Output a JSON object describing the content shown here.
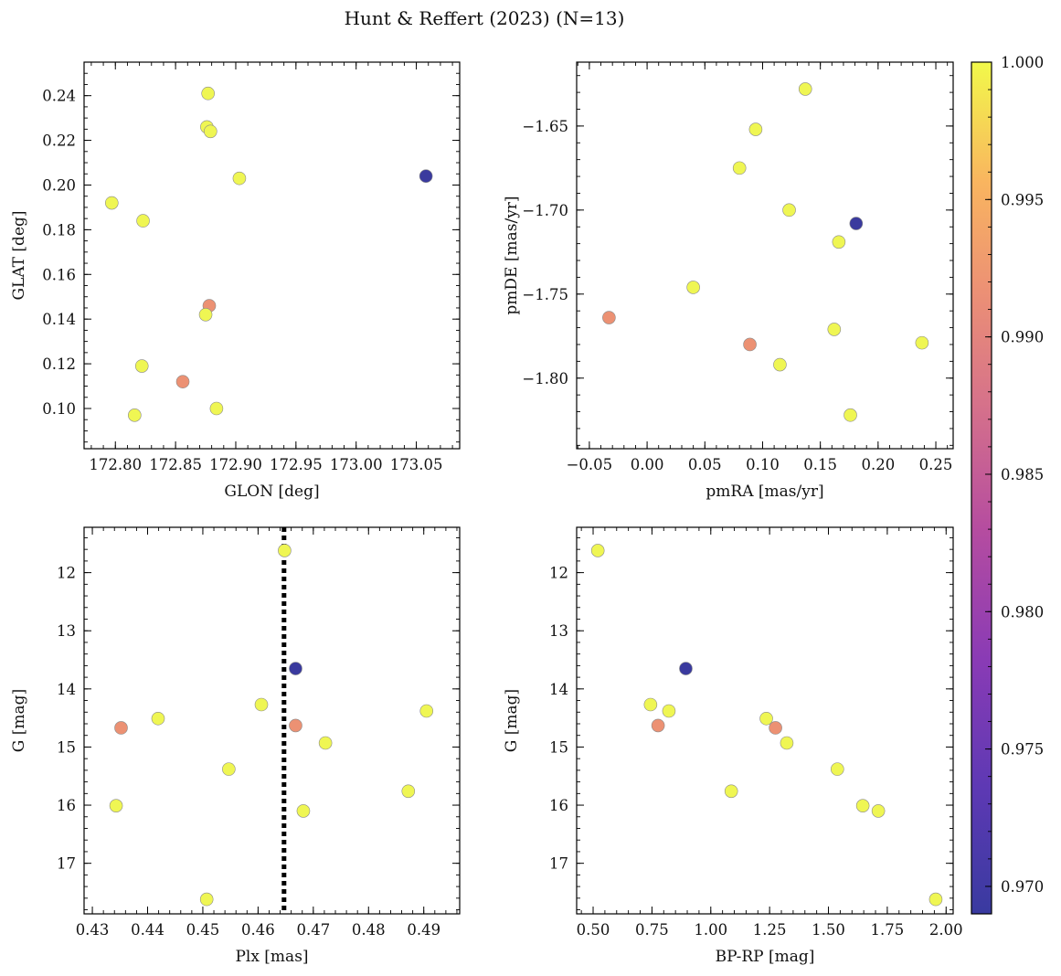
{
  "figure": {
    "title": "Hunt & Reffert (2023) (N=13)"
  },
  "colorbar": {
    "colormap": "plasma",
    "range": [
      0.969,
      1.0
    ],
    "ticks": [
      "0.970",
      "0.975",
      "0.980",
      "0.985",
      "0.990",
      "0.995",
      "1.000"
    ]
  },
  "chart_data": [
    {
      "type": "scatter",
      "xlabel": "GLON [deg]",
      "ylabel": "GLAT [deg]",
      "xlim": [
        172.774,
        173.086
      ],
      "ylim": [
        0.082,
        0.255
      ],
      "y_inverted": false,
      "xticks": [
        "172.80",
        "172.85",
        "172.90",
        "172.95",
        "173.00",
        "173.05"
      ],
      "yticks": [
        "0.10",
        "0.12",
        "0.14",
        "0.16",
        "0.18",
        "0.20",
        "0.22",
        "0.24"
      ],
      "points": [
        {
          "x": 172.797,
          "y": 0.192,
          "c": 1.0
        },
        {
          "x": 172.823,
          "y": 0.184,
          "c": 1.0
        },
        {
          "x": 172.877,
          "y": 0.241,
          "c": 1.0
        },
        {
          "x": 172.876,
          "y": 0.226,
          "c": 1.0
        },
        {
          "x": 172.879,
          "y": 0.224,
          "c": 1.0
        },
        {
          "x": 172.903,
          "y": 0.203,
          "c": 1.0
        },
        {
          "x": 173.058,
          "y": 0.204,
          "c": 0.969
        },
        {
          "x": 172.878,
          "y": 0.146,
          "c": 0.99
        },
        {
          "x": 172.875,
          "y": 0.142,
          "c": 1.0
        },
        {
          "x": 172.822,
          "y": 0.119,
          "c": 1.0
        },
        {
          "x": 172.856,
          "y": 0.112,
          "c": 0.99
        },
        {
          "x": 172.884,
          "y": 0.1,
          "c": 1.0
        },
        {
          "x": 172.816,
          "y": 0.097,
          "c": 1.0
        }
      ]
    },
    {
      "type": "scatter",
      "xlabel": "pmRA [mas/yr]",
      "ylabel": "pmDE [mas/yr]",
      "xlim": [
        -0.061,
        0.265
      ],
      "ylim": [
        -1.842,
        -1.612
      ],
      "y_inverted": false,
      "xticks": [
        "−0.05",
        "0.00",
        "0.05",
        "0.10",
        "0.15",
        "0.20",
        "0.25"
      ],
      "yticks": [
        "−1.65",
        "−1.70",
        "−1.75",
        "−1.80"
      ],
      "points": [
        {
          "x": 0.137,
          "y": -1.628,
          "c": 1.0
        },
        {
          "x": 0.094,
          "y": -1.652,
          "c": 1.0
        },
        {
          "x": 0.08,
          "y": -1.675,
          "c": 1.0
        },
        {
          "x": 0.123,
          "y": -1.7,
          "c": 1.0
        },
        {
          "x": 0.181,
          "y": -1.708,
          "c": 0.969
        },
        {
          "x": 0.166,
          "y": -1.719,
          "c": 1.0
        },
        {
          "x": 0.04,
          "y": -1.746,
          "c": 1.0
        },
        {
          "x": -0.033,
          "y": -1.764,
          "c": 0.99
        },
        {
          "x": 0.162,
          "y": -1.771,
          "c": 1.0
        },
        {
          "x": 0.089,
          "y": -1.78,
          "c": 0.99
        },
        {
          "x": 0.238,
          "y": -1.779,
          "c": 1.0
        },
        {
          "x": 0.115,
          "y": -1.792,
          "c": 1.0
        },
        {
          "x": 0.176,
          "y": -1.822,
          "c": 1.0
        }
      ]
    },
    {
      "type": "scatter",
      "xlabel": "Plx [mas]",
      "ylabel": "G [mag]",
      "xlim": [
        0.4285,
        0.4965
      ],
      "ylim": [
        17.87,
        11.22
      ],
      "y_inverted": true,
      "vline": 0.4647,
      "xticks": [
        "0.43",
        "0.44",
        "0.45",
        "0.46",
        "0.47",
        "0.48",
        "0.49"
      ],
      "yticks": [
        "12",
        "13",
        "14",
        "15",
        "16",
        "17"
      ],
      "points": [
        {
          "x": 0.4648,
          "y": 11.62,
          "c": 1.0
        },
        {
          "x": 0.4668,
          "y": 13.65,
          "c": 0.969
        },
        {
          "x": 0.4606,
          "y": 14.27,
          "c": 1.0
        },
        {
          "x": 0.4905,
          "y": 14.38,
          "c": 1.0
        },
        {
          "x": 0.4419,
          "y": 14.51,
          "c": 1.0
        },
        {
          "x": 0.4668,
          "y": 14.63,
          "c": 0.99
        },
        {
          "x": 0.4352,
          "y": 14.67,
          "c": 0.99
        },
        {
          "x": 0.4722,
          "y": 14.93,
          "c": 1.0
        },
        {
          "x": 0.4547,
          "y": 15.38,
          "c": 1.0
        },
        {
          "x": 0.4872,
          "y": 15.76,
          "c": 1.0
        },
        {
          "x": 0.4343,
          "y": 16.01,
          "c": 1.0
        },
        {
          "x": 0.4682,
          "y": 16.1,
          "c": 1.0
        },
        {
          "x": 0.4507,
          "y": 17.62,
          "c": 1.0
        }
      ]
    },
    {
      "type": "scatter",
      "xlabel": "BP-RP [mag]",
      "ylabel": "G [mag]",
      "xlim": [
        0.43,
        2.03
      ],
      "ylim": [
        17.87,
        11.22
      ],
      "y_inverted": true,
      "xticks": [
        "0.50",
        "0.75",
        "1.00",
        "1.25",
        "1.50",
        "1.75",
        "2.00"
      ],
      "yticks": [
        "12",
        "13",
        "14",
        "15",
        "16",
        "17"
      ],
      "points": [
        {
          "x": 0.52,
          "y": 11.62,
          "c": 1.0
        },
        {
          "x": 0.894,
          "y": 13.65,
          "c": 0.969
        },
        {
          "x": 0.744,
          "y": 14.27,
          "c": 1.0
        },
        {
          "x": 0.822,
          "y": 14.38,
          "c": 1.0
        },
        {
          "x": 0.776,
          "y": 14.63,
          "c": 0.99
        },
        {
          "x": 1.236,
          "y": 14.51,
          "c": 1.0
        },
        {
          "x": 1.275,
          "y": 14.67,
          "c": 0.99
        },
        {
          "x": 1.323,
          "y": 14.93,
          "c": 1.0
        },
        {
          "x": 1.538,
          "y": 15.38,
          "c": 1.0
        },
        {
          "x": 1.087,
          "y": 15.76,
          "c": 1.0
        },
        {
          "x": 1.646,
          "y": 16.01,
          "c": 1.0
        },
        {
          "x": 1.712,
          "y": 16.1,
          "c": 1.0
        },
        {
          "x": 1.956,
          "y": 17.62,
          "c": 1.0
        }
      ]
    }
  ]
}
